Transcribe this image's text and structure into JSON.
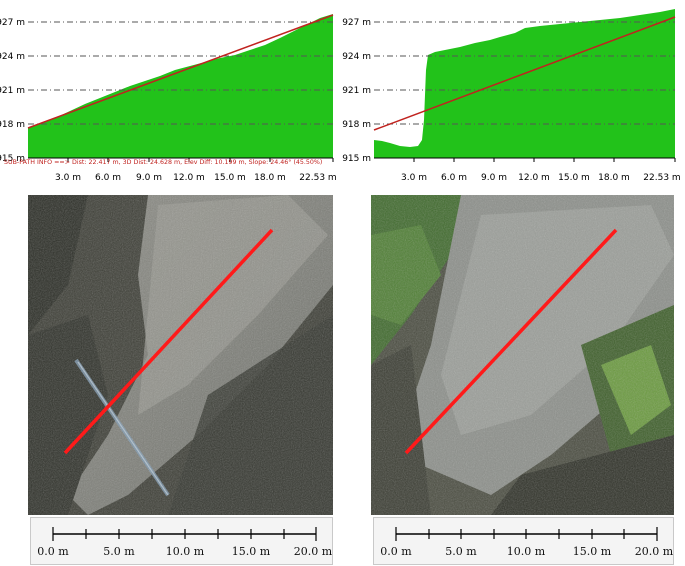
{
  "profiles": [
    {
      "y_ticks": [
        "927 m",
        "924 m",
        "921 m",
        "918 m",
        "915 m"
      ],
      "x_ticks": [
        "3.0 m",
        "6.0 m",
        "9.0 m",
        "12.0 m",
        "15.0 m",
        "18.0 m",
        "22.53 m"
      ],
      "subpath_info": "SUB-PATH INFO ==> Dist: 22.417 m, 3D Dist: 24.628 m, Elev Diff: 10.199 m, Slope: 24.46° (45.50%)"
    },
    {
      "y_ticks": [
        "927 m",
        "924 m",
        "921 m",
        "918 m",
        "915 m"
      ],
      "x_ticks": [
        "3.0 m",
        "6.0 m",
        "9.0 m",
        "12.0 m",
        "15.0 m",
        "18.0 m",
        "22.53 m"
      ]
    }
  ],
  "scalebars": [
    {
      "labels": [
        "0.0 m",
        "5.0 m",
        "10.0 m",
        "15.0 m",
        "20.0 m"
      ]
    },
    {
      "labels": [
        "0.0 m",
        "5.0 m",
        "10.0 m",
        "15.0 m",
        "20.0 m"
      ]
    }
  ],
  "colors": {
    "terrain_fill": "#22c21a",
    "slope_line": "#c0231f",
    "path_line": "#ff1a1a",
    "grid": "#555555"
  }
}
